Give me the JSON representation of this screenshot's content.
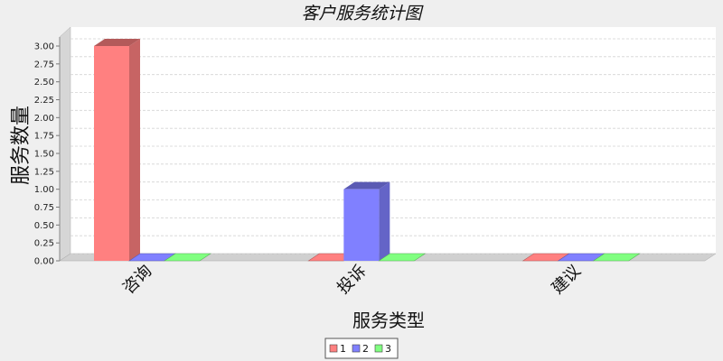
{
  "chart_data": {
    "type": "bar",
    "title": "客户服务统计图",
    "xlabel": "服务类型",
    "ylabel": "服务数量",
    "categories": [
      "咨询",
      "投诉",
      "建议"
    ],
    "series": [
      {
        "name": "1",
        "values": [
          3,
          0,
          0
        ],
        "color": "#ff8080"
      },
      {
        "name": "2",
        "values": [
          0,
          1,
          0
        ],
        "color": "#8080ff"
      },
      {
        "name": "3",
        "values": [
          0,
          0,
          0
        ],
        "color": "#80ff80"
      }
    ],
    "ylim": [
      0,
      3.0
    ],
    "yticks": [
      "0.00",
      "0.25",
      "0.50",
      "0.75",
      "1.00",
      "1.25",
      "1.50",
      "1.75",
      "2.00",
      "2.25",
      "2.50",
      "2.75",
      "3.00"
    ],
    "grid": true,
    "legend_position": "bottom"
  }
}
